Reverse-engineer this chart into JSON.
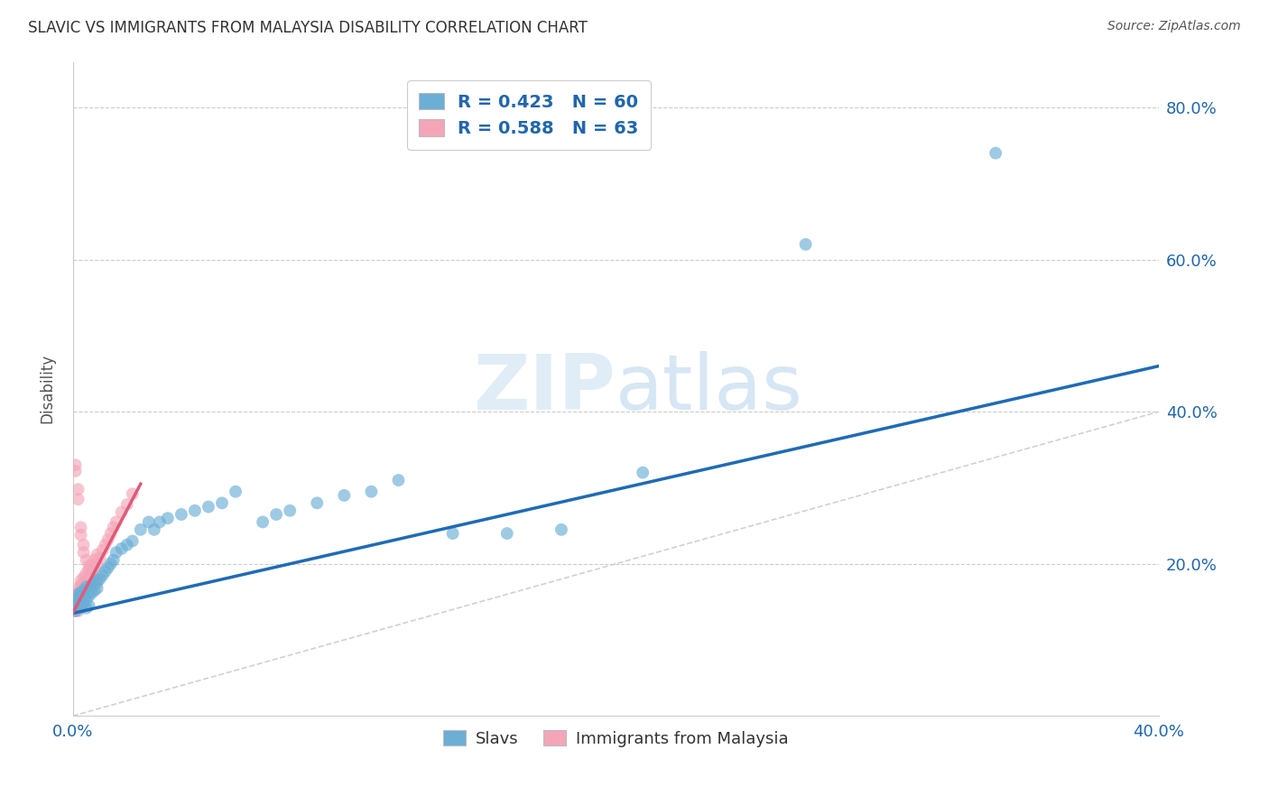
{
  "title": "SLAVIC VS IMMIGRANTS FROM MALAYSIA DISABILITY CORRELATION CHART",
  "source": "Source: ZipAtlas.com",
  "ylabel": "Disability",
  "xlim": [
    0.0,
    0.4
  ],
  "ylim": [
    0.0,
    0.86
  ],
  "xticks": [
    0.0,
    0.1,
    0.2,
    0.3,
    0.4
  ],
  "yticks": [
    0.2,
    0.4,
    0.6,
    0.8
  ],
  "xtick_labels": [
    "0.0%",
    "",
    "",
    "",
    "40.0%"
  ],
  "ytick_labels": [
    "20.0%",
    "40.0%",
    "60.0%",
    "80.0%"
  ],
  "legend_labels": [
    "Slavs",
    "Immigrants from Malaysia"
  ],
  "blue_color": "#6baed6",
  "pink_color": "#f4a6b8",
  "blue_line_color": "#1f6bb5",
  "pink_line_color": "#e05a7a",
  "diag_color": "#cccccc",
  "watermark_zip": "ZIP",
  "watermark_atlas": "atlas",
  "legend_r1": "R = 0.423",
  "legend_n1": "N = 60",
  "legend_r2": "R = 0.588",
  "legend_n2": "N = 63",
  "blue_line_x0": 0.0,
  "blue_line_x1": 0.4,
  "blue_line_y0": 0.135,
  "blue_line_y1": 0.46,
  "pink_line_x0": 0.0,
  "pink_line_x1": 0.025,
  "pink_line_y0": 0.135,
  "pink_line_y1": 0.305,
  "slavs_x": [
    0.001,
    0.001,
    0.001,
    0.002,
    0.002,
    0.002,
    0.002,
    0.003,
    0.003,
    0.003,
    0.003,
    0.004,
    0.004,
    0.004,
    0.005,
    0.005,
    0.005,
    0.005,
    0.006,
    0.006,
    0.006,
    0.007,
    0.007,
    0.008,
    0.008,
    0.009,
    0.009,
    0.01,
    0.011,
    0.012,
    0.013,
    0.014,
    0.015,
    0.016,
    0.018,
    0.02,
    0.022,
    0.025,
    0.028,
    0.03,
    0.032,
    0.035,
    0.04,
    0.045,
    0.05,
    0.055,
    0.06,
    0.07,
    0.075,
    0.08,
    0.09,
    0.1,
    0.11,
    0.12,
    0.14,
    0.16,
    0.18,
    0.21,
    0.27,
    0.34
  ],
  "slavs_y": [
    0.145,
    0.152,
    0.138,
    0.155,
    0.148,
    0.16,
    0.143,
    0.15,
    0.158,
    0.162,
    0.142,
    0.155,
    0.165,
    0.148,
    0.16,
    0.17,
    0.152,
    0.142,
    0.168,
    0.158,
    0.145,
    0.172,
    0.162,
    0.175,
    0.165,
    0.178,
    0.168,
    0.18,
    0.185,
    0.19,
    0.195,
    0.2,
    0.205,
    0.215,
    0.22,
    0.225,
    0.23,
    0.245,
    0.255,
    0.245,
    0.255,
    0.26,
    0.265,
    0.27,
    0.275,
    0.28,
    0.295,
    0.255,
    0.265,
    0.27,
    0.28,
    0.29,
    0.295,
    0.31,
    0.24,
    0.24,
    0.245,
    0.32,
    0.62,
    0.74
  ],
  "malaysia_x": [
    0.001,
    0.001,
    0.001,
    0.001,
    0.001,
    0.001,
    0.001,
    0.001,
    0.002,
    0.002,
    0.002,
    0.002,
    0.002,
    0.002,
    0.002,
    0.003,
    0.003,
    0.003,
    0.003,
    0.003,
    0.003,
    0.003,
    0.003,
    0.004,
    0.004,
    0.004,
    0.004,
    0.005,
    0.005,
    0.005,
    0.005,
    0.006,
    0.006,
    0.006,
    0.007,
    0.007,
    0.008,
    0.008,
    0.009,
    0.009,
    0.01,
    0.011,
    0.012,
    0.013,
    0.014,
    0.015,
    0.016,
    0.018,
    0.02,
    0.022,
    0.001,
    0.001,
    0.002,
    0.002,
    0.003,
    0.003,
    0.004,
    0.004,
    0.005,
    0.006,
    0.007,
    0.008,
    0.009
  ],
  "malaysia_y": [
    0.145,
    0.15,
    0.142,
    0.138,
    0.148,
    0.155,
    0.14,
    0.152,
    0.158,
    0.148,
    0.162,
    0.155,
    0.142,
    0.168,
    0.138,
    0.165,
    0.158,
    0.172,
    0.148,
    0.178,
    0.162,
    0.155,
    0.145,
    0.175,
    0.168,
    0.182,
    0.158,
    0.178,
    0.188,
    0.17,
    0.162,
    0.185,
    0.178,
    0.192,
    0.188,
    0.198,
    0.195,
    0.205,
    0.2,
    0.212,
    0.208,
    0.218,
    0.225,
    0.232,
    0.24,
    0.248,
    0.255,
    0.268,
    0.278,
    0.292,
    0.33,
    0.322,
    0.298,
    0.285,
    0.248,
    0.238,
    0.225,
    0.215,
    0.205,
    0.198,
    0.188,
    0.18,
    0.175
  ]
}
